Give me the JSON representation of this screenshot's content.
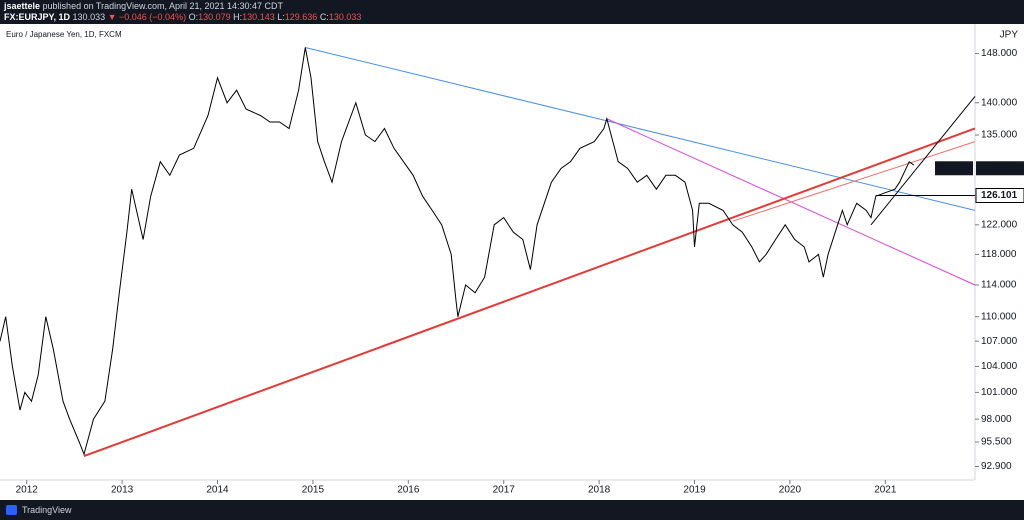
{
  "header": {
    "author": "jsaettele",
    "published": "published on TradingView.com, April 21, 2021 14:30:47 CDT",
    "symbol": "FX:EURJPY, 1D",
    "price": "130.033",
    "change": "▼ −0.046 (−0.04%)",
    "ohlc": [
      [
        "O:",
        "130.079"
      ],
      [
        "H:",
        "130.143"
      ],
      [
        "L:",
        "129.636"
      ],
      [
        "C:",
        "130.033"
      ]
    ]
  },
  "footer": {
    "brand": "TradingView"
  },
  "chart_data": {
    "type": "line",
    "title": "Euro / Japanese Yen, 1D, FXCM",
    "axis_unit": "JPY",
    "log_scale": true,
    "grid": false,
    "x": [
      2011.72,
      2011.78,
      2011.85,
      2011.93,
      2011.98,
      2012.05,
      2012.12,
      2012.2,
      2012.28,
      2012.38,
      2012.45,
      2012.55,
      2012.6,
      2012.7,
      2012.82,
      2012.9,
      2012.97,
      2013.05,
      2013.1,
      2013.22,
      2013.3,
      2013.4,
      2013.5,
      2013.6,
      2013.75,
      2013.9,
      2014.0,
      2014.1,
      2014.2,
      2014.3,
      2014.45,
      2014.55,
      2014.65,
      2014.75,
      2014.85,
      2014.92,
      2014.98,
      2015.05,
      2015.12,
      2015.2,
      2015.3,
      2015.4,
      2015.45,
      2015.55,
      2015.65,
      2015.75,
      2015.85,
      2015.95,
      2016.05,
      2016.15,
      2016.25,
      2016.35,
      2016.45,
      2016.5,
      2016.52,
      2016.6,
      2016.7,
      2016.8,
      2016.9,
      2017.0,
      2017.1,
      2017.2,
      2017.28,
      2017.35,
      2017.5,
      2017.6,
      2017.7,
      2017.8,
      2017.95,
      2018.05,
      2018.08,
      2018.2,
      2018.3,
      2018.4,
      2018.5,
      2018.6,
      2018.7,
      2018.8,
      2018.9,
      2018.98,
      2019.0,
      2019.05,
      2019.15,
      2019.3,
      2019.4,
      2019.5,
      2019.6,
      2019.68,
      2019.75,
      2019.85,
      2019.95,
      2020.05,
      2020.15,
      2020.2,
      2020.3,
      2020.35,
      2020.4,
      2020.5,
      2020.55,
      2020.6,
      2020.7,
      2020.8,
      2020.85,
      2020.9,
      2021.0,
      2021.1,
      2021.15,
      2021.25,
      2021.3
    ],
    "series": [
      {
        "name": "EURJPY",
        "color": "#000000",
        "values": [
          107,
          110,
          104,
          99,
          101,
          100,
          103,
          110,
          106,
          100,
          98,
          95.5,
          94.2,
          98,
          100,
          106,
          113,
          121,
          127,
          120,
          126,
          131,
          129,
          132,
          133,
          138,
          144,
          140,
          142,
          139,
          138,
          137,
          137,
          136,
          142,
          149,
          144,
          134,
          131,
          128,
          134,
          138,
          140,
          135,
          134,
          136,
          133,
          131,
          129,
          126,
          124,
          122,
          118,
          112,
          110,
          114,
          113,
          115,
          122,
          123,
          121,
          120,
          116,
          122,
          128,
          130,
          131,
          133,
          134,
          136,
          137.5,
          131,
          130,
          128,
          129,
          127,
          129,
          129,
          128,
          124,
          119,
          125,
          125,
          124,
          122,
          121,
          119,
          117,
          118,
          120,
          122,
          120,
          119,
          117,
          118,
          115,
          118,
          122,
          124,
          122,
          125,
          124,
          123,
          126,
          126.5,
          127,
          128,
          131,
          130.5
        ]
      }
    ],
    "last_value": 130.033,
    "level": {
      "value": 126.101,
      "x_start": 2020.9
    },
    "trend_lines": [
      {
        "color": "#4a90e2",
        "x": [
          2014.92,
          2021.94
        ],
        "y": [
          149,
          124
        ]
      },
      {
        "color": "#e040e0",
        "x": [
          2018.08,
          2021.94
        ],
        "y": [
          137.5,
          114
        ]
      },
      {
        "color": "#e53935",
        "x": [
          2012.6,
          2021.94
        ],
        "y": [
          94,
          136
        ]
      },
      {
        "color": "#ef6c6c",
        "x": [
          2019.4,
          2021.94
        ],
        "y": [
          122.5,
          134
        ]
      },
      {
        "color": "#000000",
        "x": [
          2020.85,
          2021.94
        ],
        "y": [
          122,
          141
        ]
      }
    ],
    "xlim": [
      2011.72,
      2021.94
    ],
    "xticks": [
      2012,
      2013,
      2014,
      2015,
      2016,
      2017,
      2018,
      2019,
      2020,
      2021
    ],
    "ylim": [
      91.5,
      153
    ],
    "yticks": [
      {
        "value": 148,
        "label": "148.000"
      },
      {
        "value": 140,
        "label": "140.000"
      },
      {
        "value": 135,
        "label": "135.000"
      },
      {
        "value": 122,
        "label": "122.000"
      },
      {
        "value": 118,
        "label": "118.000"
      },
      {
        "value": 114,
        "label": "114.000"
      },
      {
        "value": 110,
        "label": "110.000"
      },
      {
        "value": 107,
        "label": "107.000"
      },
      {
        "value": 104,
        "label": "104.000"
      },
      {
        "value": 101,
        "label": "101.000"
      },
      {
        "value": 98,
        "label": "98.000"
      },
      {
        "value": 95.5,
        "label": "95.500"
      },
      {
        "value": 92.9,
        "label": "92.900"
      }
    ]
  }
}
